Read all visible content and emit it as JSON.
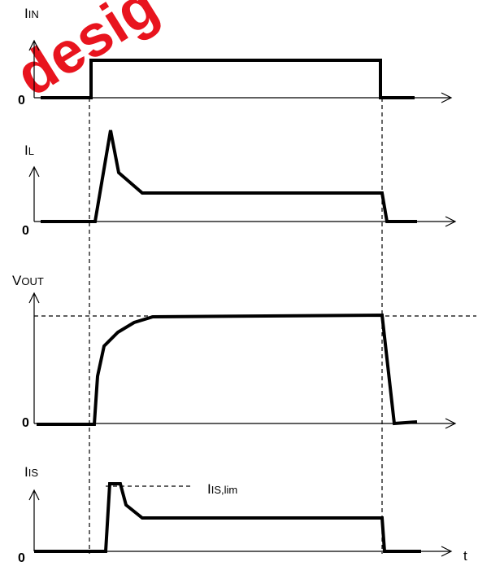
{
  "signals": [
    {
      "label": "I",
      "subscript": "IN",
      "zero": "0"
    },
    {
      "label": "I",
      "subscript": "L",
      "zero": "0"
    },
    {
      "label": "V",
      "subscript": "OUT",
      "zero": "0"
    },
    {
      "label": "I",
      "subscript": "IS",
      "zero": "0"
    }
  ],
  "limit_label": {
    "label": "I",
    "subscript": "IS,lim"
  },
  "time_axis": "t",
  "watermark": "desig"
}
